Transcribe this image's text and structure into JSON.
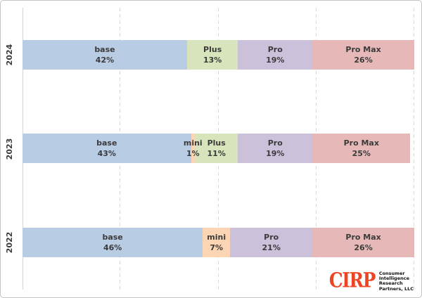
{
  "chart_data": {
    "type": "bar",
    "orientation": "horizontal-stacked",
    "title": "",
    "xlabel": "",
    "ylabel": "",
    "xlim": [
      0,
      100
    ],
    "unit": "%",
    "grid": "dashed-vertical",
    "gridlines_pct": [
      25,
      50,
      75,
      100
    ],
    "categories": [
      "2024",
      "2023",
      "2022"
    ],
    "series_order": [
      "base",
      "mini",
      "Plus",
      "Pro",
      "Pro Max"
    ],
    "colors": {
      "base": "#b8cce4",
      "mini": "#fbd5b4",
      "Plus": "#d7e4bc",
      "Pro": "#ccc1da",
      "Pro Max": "#e6b9b8"
    },
    "rows": [
      {
        "year": "2024",
        "segments": [
          {
            "label": "base",
            "value": 42
          },
          {
            "label": "Plus",
            "value": 13
          },
          {
            "label": "Pro",
            "value": 19
          },
          {
            "label": "Pro Max",
            "value": 26
          }
        ]
      },
      {
        "year": "2023",
        "segments": [
          {
            "label": "base",
            "value": 43
          },
          {
            "label": "mini",
            "value": 1
          },
          {
            "label": "Plus",
            "value": 11
          },
          {
            "label": "Pro",
            "value": 19
          },
          {
            "label": "Pro Max",
            "value": 25
          }
        ]
      },
      {
        "year": "2022",
        "segments": [
          {
            "label": "base",
            "value": 46
          },
          {
            "label": "mini",
            "value": 7
          },
          {
            "label": "Pro",
            "value": 21
          },
          {
            "label": "Pro Max",
            "value": 26
          }
        ]
      }
    ]
  },
  "logo": {
    "wordmark": "CIRP",
    "wordmark_color": "#ee4423",
    "tagline_lines": [
      "Consumer",
      "Intelligence",
      "Research",
      "Partners, LLC"
    ],
    "tagline_color": "#101010"
  },
  "style": {
    "label_text_color": "#3b3b3b",
    "gridline_color": "#d9d9d9",
    "background_color": "#ffffff"
  }
}
